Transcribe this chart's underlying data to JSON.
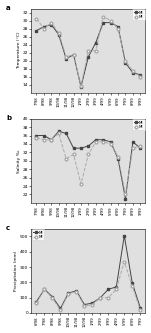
{
  "temp_M": [
    27.5,
    28.5,
    29.0,
    26.5,
    20.5,
    21.5,
    13.5,
    21.0,
    24.5,
    29.5,
    29.5,
    28.5,
    19.5,
    17.0,
    16.5
  ],
  "temp_Mi": [
    30.5,
    28.0,
    29.5,
    27.0,
    21.0,
    21.5,
    13.8,
    22.5,
    22.5,
    31.0,
    30.0,
    28.0,
    20.0,
    17.5,
    16.0
  ],
  "x_labels_temp": [
    "7/98",
    "8/98",
    "9/98",
    "10/98",
    "11/98",
    "12/98",
    "1/99",
    "2/99",
    "3/99",
    "4/99",
    "5/99",
    "6/99",
    "7/99",
    "8/99",
    "9/99"
  ],
  "temp_ylim": [
    12,
    33
  ],
  "temp_yticks": [
    14,
    16,
    18,
    20,
    22,
    24,
    26,
    28,
    30,
    32
  ],
  "sal_M": [
    36.0,
    36.0,
    35.0,
    37.0,
    36.5,
    33.0,
    33.0,
    33.5,
    35.0,
    35.0,
    34.5,
    30.5,
    21.0,
    34.5,
    33.0
  ],
  "sal_Mi": [
    35.5,
    35.0,
    35.0,
    36.5,
    30.5,
    31.5,
    24.5,
    31.5,
    34.5,
    34.5,
    34.0,
    31.0,
    22.0,
    33.0,
    33.5
  ],
  "x_labels_sal": [
    "7/98",
    "8/98",
    "9/98",
    "10/98",
    "11/98",
    "12/98",
    "1/99",
    "2/99",
    "3/99",
    "4/99",
    "5/99",
    "6/99",
    "7/99",
    "8/99",
    "9/99"
  ],
  "sal_ylim": [
    20,
    40
  ],
  "sal_yticks": [
    22,
    24,
    26,
    28,
    30,
    32,
    34,
    36,
    38,
    40
  ],
  "prec_M": [
    75.0,
    155.0,
    105.0,
    30.0,
    130.0,
    145.0,
    55.0,
    65.0,
    100.0,
    155.0,
    170.0,
    505.0,
    195.0,
    35.0
  ],
  "prec_Mi": [
    65.0,
    155.0,
    95.0,
    20.0,
    125.0,
    140.0,
    45.0,
    55.0,
    100.0,
    100.0,
    155.0,
    335.0,
    175.0,
    20.0
  ],
  "x_labels_prec": [
    "6/98",
    "7/98",
    "8/98",
    "9/98",
    "10/98",
    "11/98",
    "12/98",
    "1/99",
    "2/99",
    "3/99",
    "4/99",
    "5/99",
    "6/99",
    "7/99"
  ],
  "prec_ylim": [
    0,
    550
  ],
  "prec_yticks": [
    0,
    100,
    200,
    300,
    400,
    500
  ],
  "color_filled": "#444444",
  "color_open": "#aaaaaa",
  "bg_color": "#e0e0e0",
  "panel_labels": [
    "a",
    "b",
    "c"
  ],
  "legend_M": "MI",
  "legend_Mi": "MI"
}
